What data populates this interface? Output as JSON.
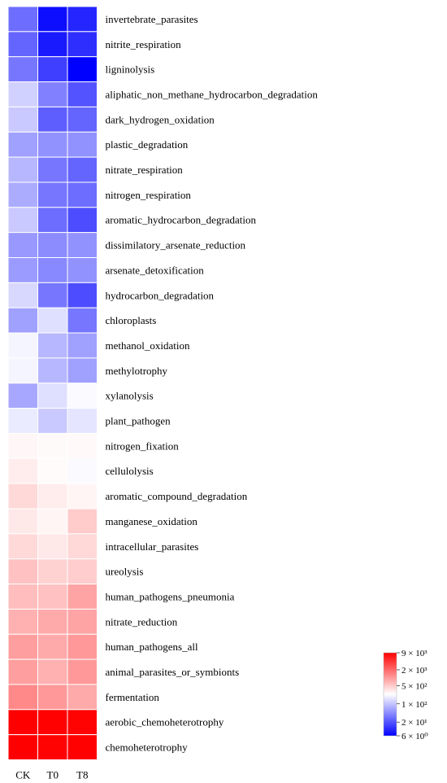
{
  "chart_data": {
    "type": "heatmap",
    "columns": [
      "CK",
      "T0",
      "T8"
    ],
    "rows": [
      "invertebrate_parasites",
      "nitrite_respiration",
      "ligninolysis",
      "aliphatic_non_methane_hydrocarbon_degradation",
      "dark_hydrogen_oxidation",
      "plastic_degradation",
      "nitrate_respiration",
      "nitrogen_respiration",
      "aromatic_hydrocarbon_degradation",
      "dissimilatory_arsenate_reduction",
      "arsenate_detoxification",
      "hydrocarbon_degradation",
      "chloroplasts",
      "methanol_oxidation",
      "methylotrophy",
      "xylanolysis",
      "plant_pathogen",
      "nitrogen_fixation",
      "cellulolysis",
      "aromatic_compound_degradation",
      "manganese_oxidation",
      "intracellular_parasites",
      "ureolysis",
      "human_pathogens_pneumonia",
      "nitrate_reduction",
      "human_pathogens_all",
      "animal_parasites_or_symbionts",
      "fermentation",
      "aerobic_chemoheterotrophy",
      "chemoheterotrophy"
    ],
    "values": [
      [
        20,
        7,
        9
      ],
      [
        18,
        8,
        10
      ],
      [
        22,
        12,
        6
      ],
      [
        60,
        25,
        15
      ],
      [
        55,
        17,
        18
      ],
      [
        35,
        30,
        30
      ],
      [
        45,
        22,
        18
      ],
      [
        40,
        22,
        20
      ],
      [
        55,
        20,
        14
      ],
      [
        32,
        28,
        30
      ],
      [
        33,
        27,
        30
      ],
      [
        65,
        22,
        14
      ],
      [
        35,
        70,
        22
      ],
      [
        90,
        45,
        35
      ],
      [
        90,
        45,
        35
      ],
      [
        38,
        70,
        95
      ],
      [
        80,
        55,
        75
      ],
      [
        115,
        110,
        112
      ],
      [
        140,
        108,
        95
      ],
      [
        200,
        140,
        120
      ],
      [
        150,
        120,
        250
      ],
      [
        200,
        150,
        200
      ],
      [
        300,
        220,
        240
      ],
      [
        320,
        300,
        500
      ],
      [
        400,
        450,
        500
      ],
      [
        550,
        450,
        600
      ],
      [
        550,
        400,
        600
      ],
      [
        800,
        600,
        450
      ],
      [
        9000,
        8800,
        8700
      ],
      [
        9000,
        8700,
        8800
      ]
    ],
    "color_scale": "log",
    "color_range": [
      6,
      9000
    ],
    "colors": {
      "low": "#0000ff",
      "mid": "#ffffff",
      "high": "#ff0000"
    },
    "legend": {
      "position": "bottom-right",
      "labels": [
        "9 × 10³",
        "2 × 10³",
        "5 × 10²",
        "1 × 10²",
        "2 × 10¹",
        "6 × 10⁰"
      ],
      "values": [
        9000,
        2000,
        500,
        100,
        20,
        6
      ]
    }
  }
}
